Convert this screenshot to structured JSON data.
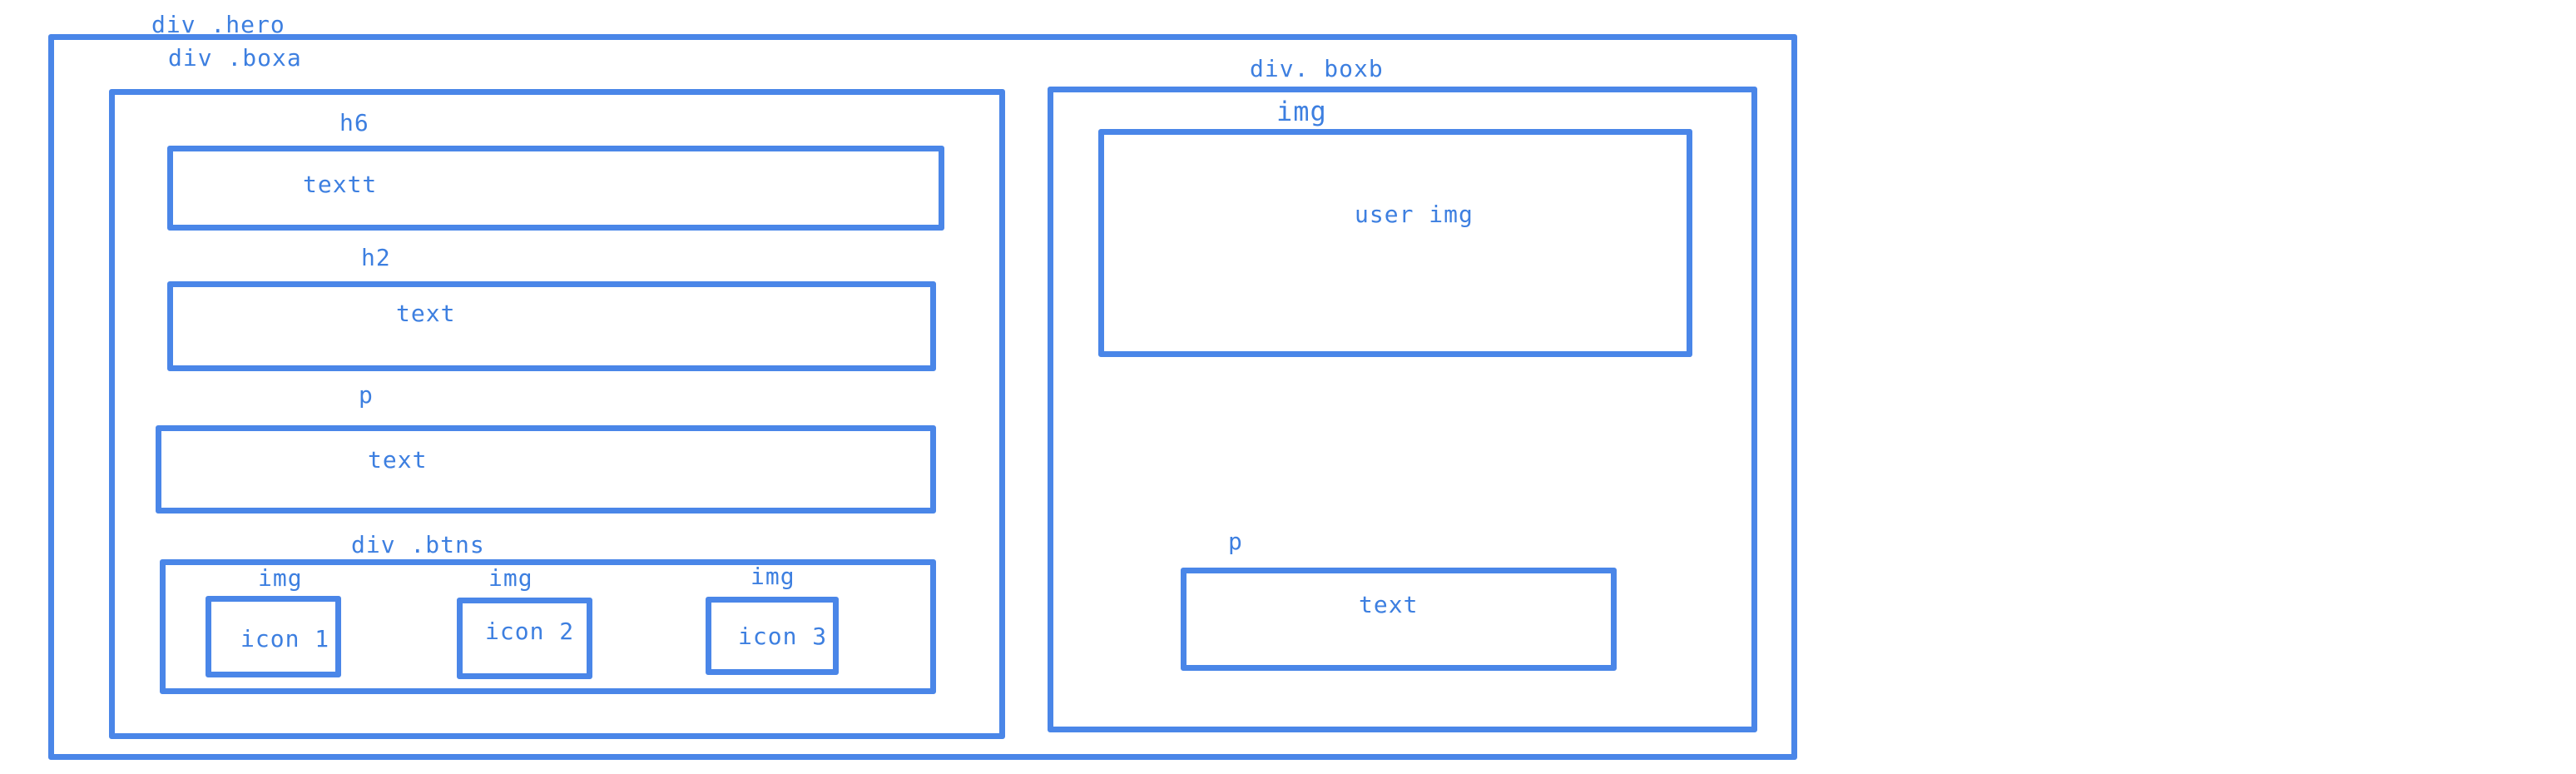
{
  "accent_color": "#4a86e8",
  "text_color": "#3d7fe0",
  "hero": {
    "label": "div .hero",
    "boxa": {
      "label": "div .boxa",
      "h6": {
        "tag": "h6",
        "text": "textt"
      },
      "h2": {
        "tag": "h2",
        "text": "text"
      },
      "p": {
        "tag": "p",
        "text": "text"
      },
      "btns": {
        "label": "div .btns",
        "icons": [
          {
            "tag": "img",
            "text": "icon 1"
          },
          {
            "tag": "img",
            "text": "icon 2"
          },
          {
            "tag": "img",
            "text": "icon 3"
          }
        ]
      }
    },
    "boxb": {
      "label": "div. boxb",
      "img": {
        "tag": "img",
        "text": "user img"
      },
      "p": {
        "tag": "p",
        "text": "text"
      }
    }
  }
}
